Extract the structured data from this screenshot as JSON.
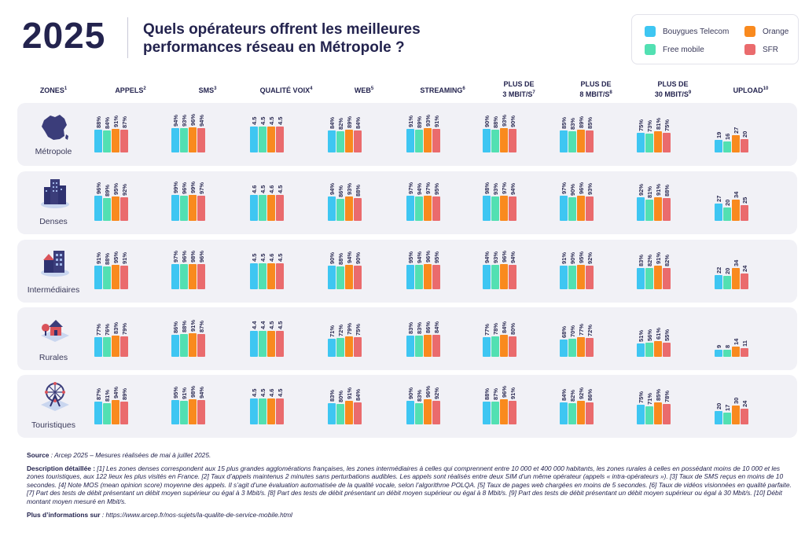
{
  "header": {
    "year": "2025",
    "title_line1": "Quels opérateurs offrent les meilleures",
    "title_line2": "performances réseau en Métropole ?"
  },
  "legend": [
    {
      "name": "Bouygues Telecom",
      "color": "#3ec6f2"
    },
    {
      "name": "Orange",
      "color": "#f98a1e"
    },
    {
      "name": "Free mobile",
      "color": "#52e0b2"
    },
    {
      "name": "SFR",
      "color": "#ea6b6d"
    }
  ],
  "columns": {
    "zones": "ZONES",
    "zones_sup": "1",
    "appels": "APPELS",
    "appels_sup": "2",
    "sms": "SMS",
    "sms_sup": "3",
    "qualite": "QUALITÉ VOIX",
    "qualite_sup": "4",
    "web": "WEB",
    "web_sup": "5",
    "streaming": "STREAMING",
    "streaming_sup": "6",
    "p3_l1": "PLUS DE",
    "p3_l2": "3 MBIT/S",
    "p3_sup": "7",
    "p8_l1": "PLUS DE",
    "p8_l2": "8 MBIT/S",
    "p8_sup": "8",
    "p30_l1": "PLUS DE",
    "p30_l2": "30 MBIT/S",
    "p30_sup": "9",
    "upload": "UPLOAD",
    "upload_sup": "10"
  },
  "chart_data": {
    "type": "bar",
    "operators_order": [
      "Bouygues Telecom",
      "Free mobile",
      "Orange",
      "SFR"
    ],
    "metrics": [
      "appels",
      "sms",
      "qualite_voix",
      "web",
      "streaming",
      "plus_3",
      "plus_8",
      "plus_30",
      "upload"
    ],
    "zones": [
      {
        "name": "Métropole",
        "values": {
          "appels": [
            "88%",
            "84%",
            "91%",
            "87%"
          ],
          "sms": [
            "94%",
            "93%",
            "96%",
            "94%"
          ],
          "qualite_voix": [
            "4.5",
            "4.5",
            "4.5",
            "4.5"
          ],
          "web": [
            "84%",
            "82%",
            "89%",
            "84%"
          ],
          "streaming": [
            "91%",
            "89%",
            "93%",
            "91%"
          ],
          "plus_3": [
            "90%",
            "88%",
            "93%",
            "90%"
          ],
          "plus_8": [
            "85%",
            "83%",
            "89%",
            "85%"
          ],
          "plus_30": [
            "75%",
            "73%",
            "81%",
            "75%"
          ],
          "upload": [
            "19",
            "16",
            "27",
            "20"
          ]
        }
      },
      {
        "name": "Denses",
        "values": {
          "appels": [
            "96%",
            "89%",
            "95%",
            "92%"
          ],
          "sms": [
            "99%",
            "96%",
            "99%",
            "97%"
          ],
          "qualite_voix": [
            "4.6",
            "4.5",
            "4.6",
            "4.5"
          ],
          "web": [
            "94%",
            "86%",
            "93%",
            "88%"
          ],
          "streaming": [
            "97%",
            "94%",
            "97%",
            "95%"
          ],
          "plus_3": [
            "98%",
            "93%",
            "97%",
            "94%"
          ],
          "plus_8": [
            "97%",
            "90%",
            "96%",
            "93%"
          ],
          "plus_30": [
            "92%",
            "81%",
            "91%",
            "88%"
          ],
          "upload": [
            "27",
            "20",
            "34",
            "25"
          ]
        }
      },
      {
        "name": "Intermédiaires",
        "values": {
          "appels": [
            "91%",
            "88%",
            "95%",
            "91%"
          ],
          "sms": [
            "97%",
            "96%",
            "98%",
            "96%"
          ],
          "qualite_voix": [
            "4.5",
            "4.5",
            "4.6",
            "4.5"
          ],
          "web": [
            "90%",
            "88%",
            "94%",
            "90%"
          ],
          "streaming": [
            "95%",
            "94%",
            "96%",
            "95%"
          ],
          "plus_3": [
            "94%",
            "93%",
            "96%",
            "94%"
          ],
          "plus_8": [
            "91%",
            "90%",
            "95%",
            "92%"
          ],
          "plus_30": [
            "83%",
            "82%",
            "91%",
            "82%"
          ],
          "upload": [
            "22",
            "20",
            "34",
            "24"
          ]
        }
      },
      {
        "name": "Rurales",
        "values": {
          "appels": [
            "77%",
            "76%",
            "83%",
            "79%"
          ],
          "sms": [
            "86%",
            "88%",
            "91%",
            "87%"
          ],
          "qualite_voix": [
            "4.4",
            "4.4",
            "4.5",
            "4.5"
          ],
          "web": [
            "71%",
            "72%",
            "79%",
            "75%"
          ],
          "streaming": [
            "83%",
            "83%",
            "86%",
            "84%"
          ],
          "plus_3": [
            "77%",
            "78%",
            "84%",
            "80%"
          ],
          "plus_8": [
            "68%",
            "70%",
            "77%",
            "72%"
          ],
          "plus_30": [
            "51%",
            "56%",
            "61%",
            "55%"
          ],
          "upload": [
            "9",
            "8",
            "14",
            "11"
          ]
        }
      },
      {
        "name": "Touristiques",
        "values": {
          "appels": [
            "87%",
            "81%",
            "94%",
            "89%"
          ],
          "sms": [
            "95%",
            "91%",
            "98%",
            "94%"
          ],
          "qualite_voix": [
            "4.5",
            "4.5",
            "4.6",
            "4.5"
          ],
          "web": [
            "83%",
            "80%",
            "91%",
            "84%"
          ],
          "streaming": [
            "90%",
            "83%",
            "96%",
            "92%"
          ],
          "plus_3": [
            "88%",
            "87%",
            "96%",
            "91%"
          ],
          "plus_8": [
            "84%",
            "82%",
            "92%",
            "86%"
          ],
          "plus_30": [
            "75%",
            "71%",
            "85%",
            "78%"
          ],
          "upload": [
            "20",
            "17",
            "30",
            "24"
          ]
        }
      }
    ]
  },
  "footer": {
    "source_label": "Source",
    "source_text": " : Arcep 2025 – Mesures réalisées de mai à juillet 2025.",
    "desc_label": "Description détaillée : ",
    "desc_text": "[1] Les zones denses correspondent aux 15 plus grandes agglomérations françaises, les zones intermédiaires à celles qui comprennent entre 10 000 et 400 000 habitants, les zones rurales à celles en possédant moins de 10 000 et les zones touristiques, aux 122 lieux les plus visités en France. [2] Taux d’appels maintenus 2 minutes sans perturbations audibles. Les appels sont réalisés entre deux SIM d’un même opérateur (appels « intra-opérateurs »). [3] Taux de SMS reçus en moins de 10 secondes. [4] Note MOS (mean opinion score) moyenne des appels. Il s’agit d’une évaluation automatisée de la qualité vocale, selon l’algorithme POLQA. [5] Taux de pages web chargées en moins de 5 secondes. [6] Taux de vidéos visionnées en qualité parfaite. [7] Part des tests de débit présentant un débit moyen supérieur ou égal à 3 Mbit/s. [8] Part des tests de débit présentant un débit moyen supérieur ou égal à 8 Mbit/s. [9] Part des tests de débit présentant un débit moyen supérieur ou égal à 30 Mbit/s. [10] Débit montant moyen mesuré en Mbit/s.",
    "more_label": "Plus d’informations sur",
    "more_text": " : https://www.arcep.fr/nos-sujets/la-qualite-de-service-mobile.html"
  }
}
